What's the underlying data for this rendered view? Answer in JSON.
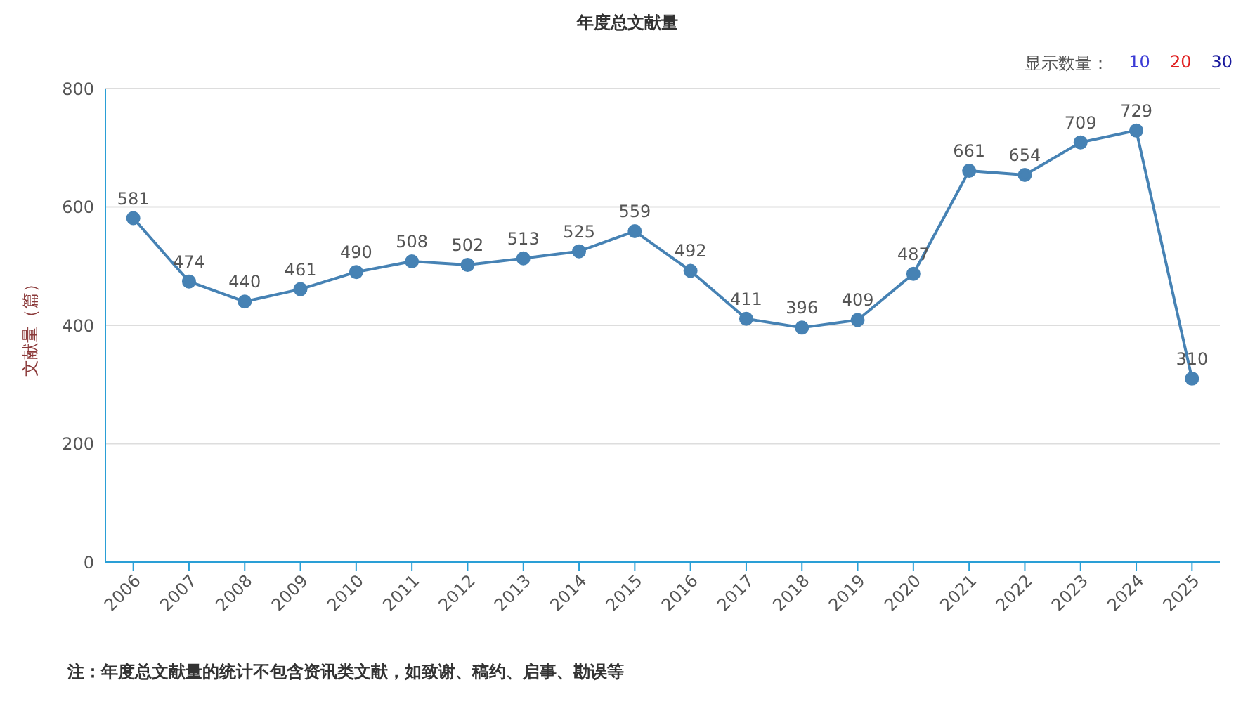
{
  "chart_data": {
    "type": "line",
    "title": "年度总文献量",
    "ylabel": "文献量（篇）",
    "categories": [
      "2006",
      "2007",
      "2008",
      "2009",
      "2010",
      "2011",
      "2012",
      "2013",
      "2014",
      "2015",
      "2016",
      "2017",
      "2018",
      "2019",
      "2020",
      "2021",
      "2022",
      "2023",
      "2024",
      "2025"
    ],
    "series": [
      {
        "color": "#4682b4",
        "values": [
          581,
          474,
          440,
          461,
          490,
          508,
          502,
          513,
          525,
          559,
          492,
          411,
          396,
          409,
          487,
          661,
          654,
          709,
          729,
          310
        ]
      }
    ],
    "ylim": [
      0,
      800
    ],
    "yticks": [
      0,
      200,
      400,
      600,
      800
    ],
    "grid": "y",
    "marker": "circle",
    "line_style": "solid",
    "data_labels": true,
    "legend": false,
    "annotations": [
      "显示数量：",
      "10",
      "20",
      "30",
      "注：年度总文献量的统计不包含资讯类文献，如致谢、稿约、启事、勘误等"
    ]
  }
}
